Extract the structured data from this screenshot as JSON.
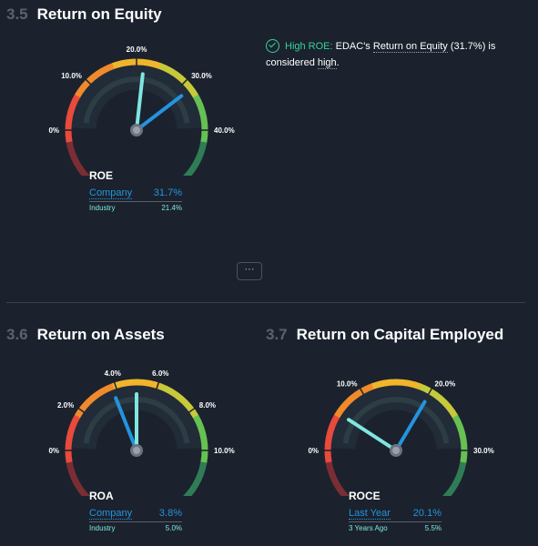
{
  "roe": {
    "section_num": "3.5",
    "section_title": "Return on Equity",
    "gauge": {
      "min": 0,
      "max": 40,
      "ticks": [
        {
          "v": 0,
          "label": "0%"
        },
        {
          "v": 10,
          "label": "10.0%"
        },
        {
          "v": 20,
          "label": "20.0%"
        },
        {
          "v": 30,
          "label": "30.0%"
        },
        {
          "v": 40,
          "label": "40.0%"
        }
      ],
      "needle_primary": 31.7,
      "needle_secondary": 21.4
    },
    "metric": {
      "title": "ROE",
      "label1": "Company",
      "value1": "31.7%",
      "label2": "Industry",
      "value2": "21.4%"
    },
    "insight": {
      "highlight": "High ROE:",
      "text1": " EDAC's ",
      "link": "Return on Equity",
      "text2": " (31.7%) is",
      "text3": "considered ",
      "word": "high",
      "end": "."
    },
    "more_button": "···"
  },
  "roa": {
    "section_num": "3.6",
    "section_title": "Return on Assets",
    "gauge": {
      "min": 0,
      "max": 10,
      "ticks": [
        {
          "v": 0,
          "label": "0%"
        },
        {
          "v": 2,
          "label": "2.0%"
        },
        {
          "v": 4,
          "label": "4.0%"
        },
        {
          "v": 6,
          "label": "6.0%"
        },
        {
          "v": 8,
          "label": "8.0%"
        },
        {
          "v": 10,
          "label": "10.0%"
        }
      ],
      "needle_primary": 3.8,
      "needle_secondary": 5.0
    },
    "metric": {
      "title": "ROA",
      "label1": "Company",
      "value1": "3.8%",
      "label2": "Industry",
      "value2": "5.0%"
    }
  },
  "roce": {
    "section_num": "3.7",
    "section_title": "Return on Capital Employed",
    "gauge": {
      "min": 0,
      "max": 30,
      "ticks": [
        {
          "v": 0,
          "label": "0%"
        },
        {
          "v": 10,
          "label": "10.0%"
        },
        {
          "v": 20,
          "label": "20.0%"
        },
        {
          "v": 30,
          "label": "30.0%"
        }
      ],
      "needle_primary": 20.1,
      "needle_secondary": 5.5
    },
    "metric": {
      "title": "ROCE",
      "label1": "Last Year",
      "value1": "20.1%",
      "label2": "3 Years Ago",
      "value2": "5.5%"
    }
  },
  "colors": {
    "primary_needle": "#2394df",
    "secondary_needle": "#7fe6e0",
    "good": "#34d399"
  }
}
